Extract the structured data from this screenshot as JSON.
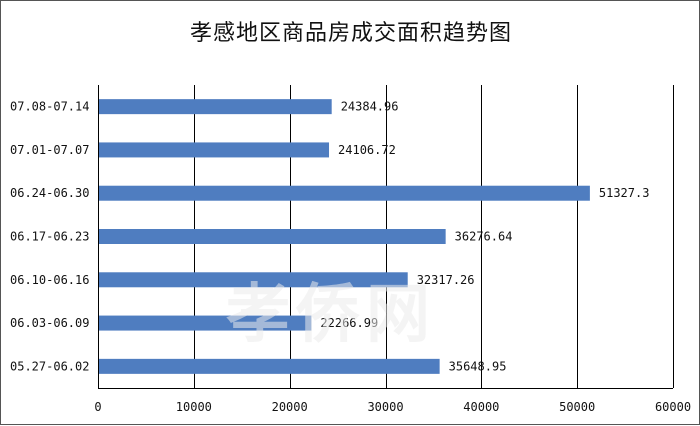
{
  "chart_data": {
    "type": "bar",
    "orientation": "horizontal",
    "title": "孝感地区商品房成交面积趋势图",
    "categories": [
      "07.08-07.14",
      "07.01-07.07",
      "06.24-06.30",
      "06.17-06.23",
      "06.10-06.16",
      "06.03-06.09",
      "05.27-06.02"
    ],
    "values": [
      24384.96,
      24106.72,
      51327.3,
      36276.64,
      32317.26,
      22266.99,
      35648.95
    ],
    "value_labels": [
      "24384.96",
      "24106.72",
      "51327.3",
      "36276.64",
      "32317.26",
      "22266.99",
      "35648.95"
    ],
    "xlim": [
      0,
      60000
    ],
    "xticks": [
      0,
      10000,
      20000,
      30000,
      40000,
      50000,
      60000
    ],
    "xtick_labels": [
      "0",
      "10000",
      "20000",
      "30000",
      "40000",
      "50000",
      "60000"
    ],
    "grid": true,
    "legend": "none",
    "bar_color": "#4F7DC0"
  },
  "watermark": "孝侨网"
}
